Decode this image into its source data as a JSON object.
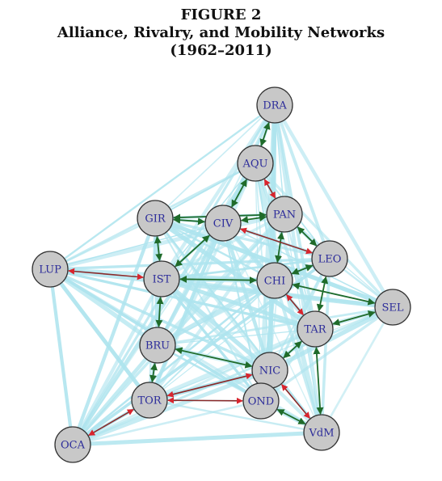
{
  "figure": {
    "label": "FIGURE 2",
    "title": "Alliance, Rivalry, and Mobility Networks",
    "period": "(1962–2011)"
  },
  "colors": {
    "mobility": "#aee4ee",
    "alliance": "#1f6b2a",
    "rivalry": "#d8252e",
    "rivalry_dark": "#8b2a2a",
    "node_fill": "#c8c8c8",
    "node_stroke": "#333333",
    "label": "#2c2c9a"
  },
  "nodes": [
    {
      "id": "DRA",
      "label": "DRA"
    },
    {
      "id": "AQU",
      "label": "AQU"
    },
    {
      "id": "GIR",
      "label": "GIR"
    },
    {
      "id": "CIV",
      "label": "CIV"
    },
    {
      "id": "PAN",
      "label": "PAN"
    },
    {
      "id": "LEO",
      "label": "LEO"
    },
    {
      "id": "LUP",
      "label": "LUP"
    },
    {
      "id": "IST",
      "label": "IST"
    },
    {
      "id": "CHI",
      "label": "CHI"
    },
    {
      "id": "SEL",
      "label": "SEL"
    },
    {
      "id": "TAR",
      "label": "TAR"
    },
    {
      "id": "BRU",
      "label": "BRU"
    },
    {
      "id": "NIC",
      "label": "NIC"
    },
    {
      "id": "TOR",
      "label": "TOR"
    },
    {
      "id": "OND",
      "label": "OND"
    },
    {
      "id": "OCA",
      "label": "OCA"
    },
    {
      "id": "VdM",
      "label": "VdM"
    }
  ],
  "alliances": [
    [
      "DRA",
      "AQU"
    ],
    [
      "AQU",
      "CIV"
    ],
    [
      "GIR",
      "CIV"
    ],
    [
      "GIR",
      "PAN"
    ],
    [
      "CIV",
      "PAN"
    ],
    [
      "PAN",
      "LEO"
    ],
    [
      "PAN",
      "CHI"
    ],
    [
      "CIV",
      "IST"
    ],
    [
      "GIR",
      "IST"
    ],
    [
      "IST",
      "CHI"
    ],
    [
      "IST",
      "BRU"
    ],
    [
      "CHI",
      "SEL"
    ],
    [
      "LEO",
      "TAR"
    ],
    [
      "TAR",
      "SEL"
    ],
    [
      "TAR",
      "NIC"
    ],
    [
      "BRU",
      "NIC"
    ],
    [
      "BRU",
      "TOR"
    ],
    [
      "NIC",
      "OND"
    ],
    [
      "OND",
      "VdM"
    ],
    [
      "CHI",
      "LEO"
    ],
    [
      "TAR",
      "VdM"
    ]
  ],
  "rivalries": [
    [
      "AQU",
      "PAN"
    ],
    [
      "CIV",
      "LEO"
    ],
    [
      "IST",
      "LUP"
    ],
    [
      "CHI",
      "TAR"
    ],
    [
      "TOR",
      "OCA"
    ],
    [
      "OND",
      "TOR"
    ],
    [
      "NIC",
      "VdM"
    ],
    [
      "NIC",
      "TOR"
    ]
  ]
}
